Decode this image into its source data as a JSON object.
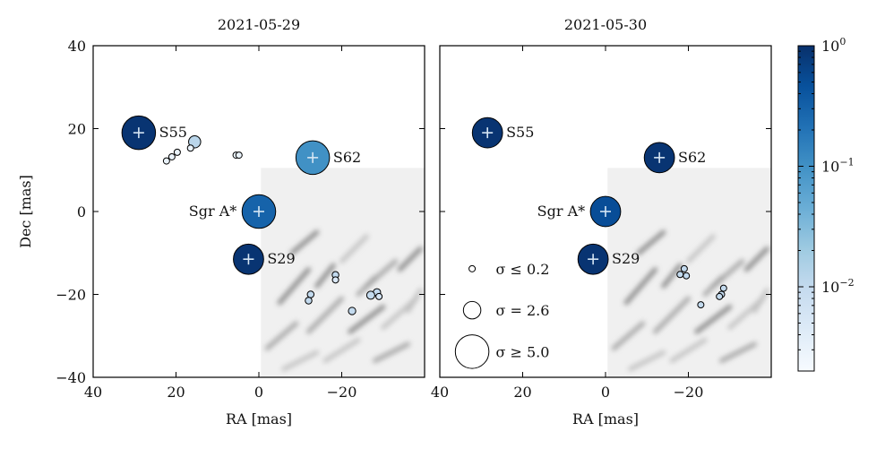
{
  "chart_data": [
    {
      "type": "scatter",
      "title": "2021-05-29",
      "xlabel": "RA [mas]",
      "ylabel": "Dec [mas]",
      "xlim": [
        40,
        -40
      ],
      "ylim": [
        -40,
        40
      ],
      "x_ticks": [
        40,
        20,
        0,
        -20
      ],
      "x_tick_labels": [
        "40",
        "20",
        "0",
        "−20"
      ],
      "y_ticks": [
        -40,
        -20,
        0,
        20,
        40
      ],
      "y_tick_labels": [
        "−40",
        "−20",
        "0",
        "20",
        "40"
      ],
      "background": "residual image (grayscale) in lower-right quadrant",
      "named_sources": [
        {
          "name": "S55",
          "ra": 29,
          "dec": 19,
          "sigma": 5.0,
          "flux": 0.9
        },
        {
          "name": "S62",
          "ra": -13,
          "dec": 13,
          "sigma": 5.0,
          "flux": 0.1
        },
        {
          "name": "Sgr A*",
          "ra": 0,
          "dec": 0,
          "sigma": 5.0,
          "flux": 0.3
        },
        {
          "name": "S29",
          "ra": 2.5,
          "dec": -11.5,
          "sigma": 4.5,
          "flux": 0.9
        }
      ],
      "faint_sources": [
        {
          "ra": 15.5,
          "dec": 16.8,
          "sigma": 1.8,
          "flux": 0.012
        },
        {
          "ra": 19.7,
          "dec": 14.3,
          "sigma": 0.6,
          "flux": 0.003
        },
        {
          "ra": 22.3,
          "dec": 12.2,
          "sigma": 0.6,
          "flux": 0.003
        },
        {
          "ra": 21.0,
          "dec": 13.2,
          "sigma": 0.6,
          "flux": 0.003
        },
        {
          "ra": 16.5,
          "dec": 15.3,
          "sigma": 0.6,
          "flux": 0.003
        },
        {
          "ra": 5.5,
          "dec": 13.6,
          "sigma": 0.9,
          "flux": 0.003
        },
        {
          "ra": 4.8,
          "dec": 13.6,
          "sigma": 0.5,
          "flux": 0.003
        },
        {
          "ra": -18.5,
          "dec": -15.3,
          "sigma": 1.0,
          "flux": 0.01
        },
        {
          "ra": -18.5,
          "dec": -16.5,
          "sigma": 0.8,
          "flux": 0.005
        },
        {
          "ra": -12.5,
          "dec": -20.0,
          "sigma": 1.0,
          "flux": 0.01
        },
        {
          "ra": -12.0,
          "dec": -21.5,
          "sigma": 1.0,
          "flux": 0.01
        },
        {
          "ra": -22.5,
          "dec": -24.0,
          "sigma": 1.1,
          "flux": 0.01
        },
        {
          "ra": -28.5,
          "dec": -19.5,
          "sigma": 1.1,
          "flux": 0.01
        },
        {
          "ra": -27.0,
          "dec": -20.2,
          "sigma": 1.2,
          "flux": 0.01
        },
        {
          "ra": -29.0,
          "dec": -20.5,
          "sigma": 0.8,
          "flux": 0.006
        }
      ]
    },
    {
      "type": "scatter",
      "title": "2021-05-30",
      "xlabel": "RA [mas]",
      "ylabel": "",
      "xlim": [
        40,
        -40
      ],
      "ylim": [
        -40,
        40
      ],
      "x_ticks": [
        40,
        20,
        0,
        -20
      ],
      "x_tick_labels": [
        "40",
        "20",
        "0",
        "−20"
      ],
      "y_ticks": [
        -40,
        -20,
        0,
        20,
        40
      ],
      "background": "residual image (grayscale) in lower-right quadrant",
      "named_sources": [
        {
          "name": "S55",
          "ra": 28.5,
          "dec": 19,
          "sigma": 4.5,
          "flux": 0.9
        },
        {
          "name": "S62",
          "ra": -13,
          "dec": 13,
          "sigma": 4.5,
          "flux": 0.9
        },
        {
          "name": "Sgr A*",
          "ra": 0,
          "dec": 0,
          "sigma": 4.5,
          "flux": 0.5
        },
        {
          "name": "S29",
          "ra": 3,
          "dec": -11.5,
          "sigma": 4.5,
          "flux": 0.9
        }
      ],
      "faint_sources": [
        {
          "ra": -19.0,
          "dec": -13.8,
          "sigma": 0.9,
          "flux": 0.01
        },
        {
          "ra": -19.5,
          "dec": -15.5,
          "sigma": 0.9,
          "flux": 0.01
        },
        {
          "ra": -18.0,
          "dec": -15.2,
          "sigma": 0.8,
          "flux": 0.01
        },
        {
          "ra": -23.0,
          "dec": -22.5,
          "sigma": 0.8,
          "flux": 0.01
        },
        {
          "ra": -28.5,
          "dec": -18.5,
          "sigma": 0.9,
          "flux": 0.01
        },
        {
          "ra": -28.0,
          "dec": -20.0,
          "sigma": 0.9,
          "flux": 0.01
        },
        {
          "ra": -27.5,
          "dec": -20.5,
          "sigma": 0.8,
          "flux": 0.01
        }
      ],
      "legend": {
        "placement": "lower-left",
        "entries": [
          {
            "label": "σ ≤ 0.2",
            "sigma": 0.2
          },
          {
            "label": "σ = 2.6",
            "sigma": 2.6
          },
          {
            "label": "σ ≥ 5.0",
            "sigma": 5.0
          }
        ]
      }
    }
  ],
  "colorbar": {
    "scale": "log",
    "range": [
      0.002,
      1
    ],
    "ticks": [
      {
        "value": 1,
        "base": "10",
        "exp": "0"
      },
      {
        "value": 0.1,
        "base": "10",
        "exp": "−1"
      },
      {
        "value": 0.01,
        "base": "10",
        "exp": "−2"
      }
    ],
    "colormap": [
      "#f7fbff",
      "#deebf7",
      "#c6dbef",
      "#9ecae1",
      "#6baed6",
      "#4292c6",
      "#2171b5",
      "#08519c",
      "#08306b"
    ]
  }
}
